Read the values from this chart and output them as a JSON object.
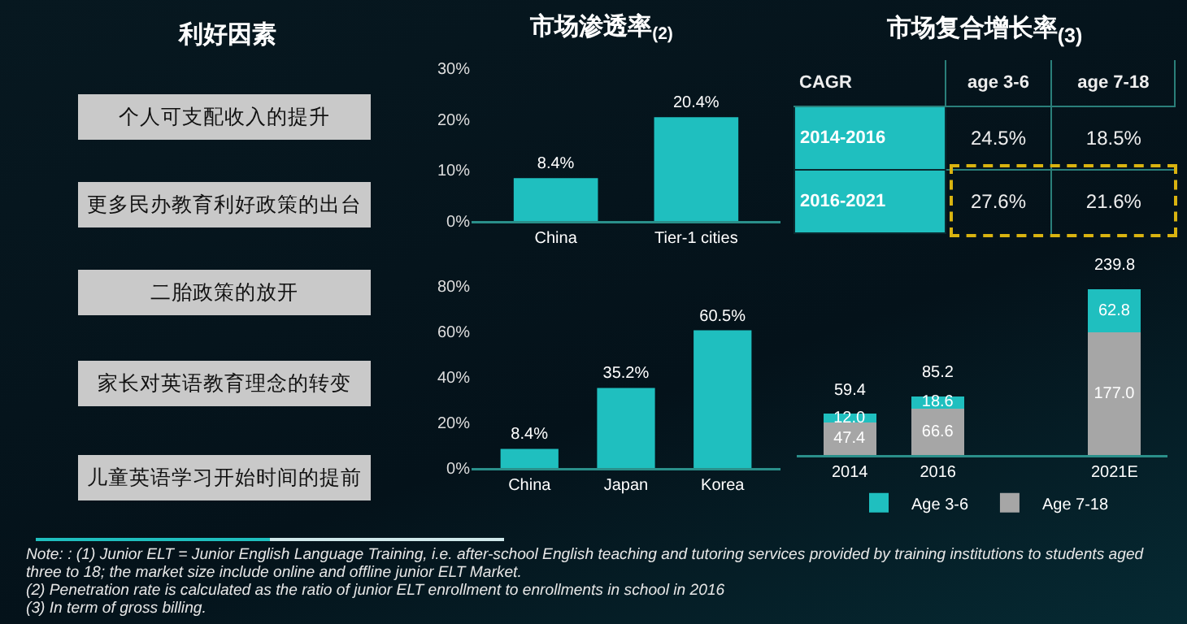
{
  "chart_data": [
    {
      "type": "other",
      "title": "利好因素",
      "categories": [
        "个人可支配收入的提升",
        "更多民办教育利好政策的出台",
        "二胎政策的放开",
        "家长对英语教育理念的转变",
        "儿童英语学习开始时间的提前"
      ],
      "annotations": [
        "Note: : (1)  Junior ELT = Junior English Language Training,  i.e. after-school English teaching and tutoring services provided by training institutions to students aged three to 18; the market size include online and offline junior ELT Market.",
        "(2)  Penetration rate is calculated as the ratio of junior ELT enrollment to enrollments in school in 2016",
        "(3) In term of gross billing."
      ]
    },
    {
      "type": "bar",
      "title": "市场渗透率$_{(2)}$",
      "categories": [
        "China",
        "Tier-1 cities"
      ],
      "values": [
        8.4,
        20.4
      ],
      "color": "#1fbfbf",
      "value_labels": [
        "8.4%",
        "20.4%"
      ],
      "ylim": [
        0,
        30
      ],
      "yticks": [
        {
          "value": 0,
          "label": "0%"
        },
        {
          "value": 10,
          "label": "10%"
        },
        {
          "value": 20,
          "label": "20%"
        },
        {
          "value": 30,
          "label": "30%"
        }
      ]
    },
    {
      "type": "bar",
      "categories": [
        "China",
        "Japan",
        "Korea"
      ],
      "values": [
        8.4,
        35.2,
        60.5
      ],
      "color": "#1fbfbf",
      "value_labels": [
        "8.4%",
        "35.2%",
        "60.5%"
      ],
      "ylim": [
        0,
        80
      ],
      "yticks": [
        {
          "value": 0,
          "label": "0%"
        },
        {
          "value": 20,
          "label": "20%"
        },
        {
          "value": 40,
          "label": "40%"
        },
        {
          "value": 60,
          "label": "60%"
        },
        {
          "value": 80,
          "label": "80%"
        }
      ]
    },
    {
      "type": "heatmap",
      "title": "市场复合增长率$_{(3)}$",
      "ylabel": "CAGR",
      "categories": [
        "age 3-6",
        "age 7-18"
      ],
      "y_categories": [
        "2014-2016",
        "2016-2021"
      ],
      "cells": [
        [
          24.5,
          18.5
        ],
        [
          27.6,
          21.6
        ]
      ],
      "cell_labels": [
        [
          "24.5%",
          "18.5%"
        ],
        [
          "27.6%",
          "21.6%"
        ]
      ]
    },
    {
      "type": "bar",
      "stacked": true,
      "categories": [
        "2014",
        "2016",
        null,
        "2021E"
      ],
      "legend": "bottom",
      "tick_labels": "x",
      "series": [
        {
          "name": "Age 7-18",
          "color": "#a6a6a6",
          "values": [
            47.4,
            66.6,
            null,
            177.0
          ],
          "value_labels": [
            "47.4",
            "66.6",
            null,
            "177.0"
          ]
        },
        {
          "name": "Age 3-6",
          "color": "#1fbfbf",
          "values": [
            12.0,
            18.6,
            null,
            62.8
          ],
          "value_labels": [
            "12.0",
            "18.6",
            null,
            "62.8"
          ]
        }
      ],
      "totals": [
        "59.4",
        "85.2",
        null,
        "239.8"
      ]
    }
  ]
}
